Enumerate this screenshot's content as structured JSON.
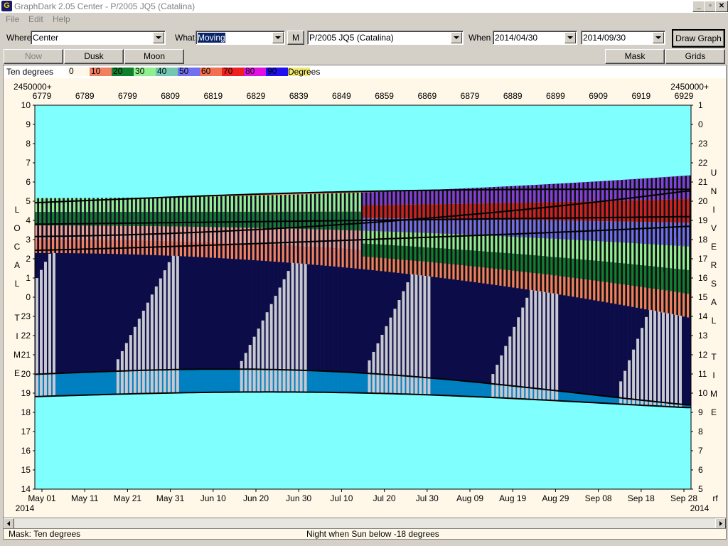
{
  "window": {
    "title": "GraphDark 2.05  Center  -  P/2005 JQ5 (Catalina)",
    "icon_letter": "G",
    "controls": [
      "_",
      "▫",
      "✕"
    ]
  },
  "menu": {
    "items": [
      "File",
      "Edit",
      "Help"
    ]
  },
  "toolbar": {
    "where_label": "Where",
    "where_value": "Center",
    "what_label": "What",
    "what_value": "Moving",
    "m_label": "M",
    "object_value": "P/2005 JQ5 (Catalina)",
    "when_label": "When",
    "start_date": "2014/04/30",
    "end_date": "2014/09/30",
    "draw_label": "Draw Graph"
  },
  "toolbar2": {
    "now_label": "Now",
    "dusk_label": "Dusk",
    "moon_label": "Moon",
    "mask_label": "Mask",
    "grids_label": "Grids"
  },
  "legend": {
    "title": "Ten degrees",
    "unit": "Degrees",
    "items": [
      {
        "label": "0",
        "color": "#fff8e8"
      },
      {
        "label": "10",
        "color": "#f08060"
      },
      {
        "label": "20",
        "color": "#108030"
      },
      {
        "label": "30",
        "color": "#90f090"
      },
      {
        "label": "40",
        "color": "#70c8b0"
      },
      {
        "label": "50",
        "color": "#7070f0"
      },
      {
        "label": "60",
        "color": "#f07050"
      },
      {
        "label": "70",
        "color": "#f02020"
      },
      {
        "label": "80",
        "color": "#e010e0"
      },
      {
        "label": "90",
        "color": "#2010f0"
      },
      {
        "label": "",
        "color": "#f0e870"
      }
    ]
  },
  "chart": {
    "jd_prefix": "2450000+",
    "jd_ticks": [
      "6779",
      "6789",
      "6799",
      "6809",
      "6819",
      "6829",
      "6839",
      "6849",
      "6859",
      "6869",
      "6879",
      "6889",
      "6899",
      "6909",
      "6919",
      "6929"
    ],
    "date_ticks": [
      "May 01",
      "May 11",
      "May 21",
      "May 31",
      "Jun 10",
      "Jun 20",
      "Jun 30",
      "Jul 10",
      "Jul 20",
      "Jul 30",
      "Aug 09",
      "Aug 19",
      "Aug 29",
      "Sep 08",
      "Sep 18",
      "Sep 28"
    ],
    "year_left": "2014",
    "year_right": "2014",
    "left_hours": [
      "10",
      "9",
      "8",
      "7",
      "6",
      "5",
      "4",
      "3",
      "2",
      "1",
      "0",
      "23",
      "22",
      "21",
      "20",
      "19",
      "18",
      "17",
      "16",
      "15",
      "14"
    ],
    "right_hours": [
      "1",
      "0",
      "23",
      "22",
      "21",
      "20",
      "19",
      "18",
      "17",
      "16",
      "15",
      "14",
      "13",
      "12",
      "11",
      "10",
      "9",
      "8",
      "7",
      "6",
      "5"
    ],
    "left_vertical_1": [
      "L",
      "O",
      "C",
      "A",
      "L"
    ],
    "left_vertical_2": [
      "T",
      "I",
      "M",
      "E"
    ],
    "right_vertical_1": [
      "U",
      "N",
      "I",
      "V",
      "E",
      "R",
      "S",
      "A",
      "L"
    ],
    "right_vertical_2": [
      "T",
      "I",
      "M",
      "E"
    ],
    "right_corner_label": "rf",
    "colors": {
      "day": "#80ffff",
      "night": "#0c0c48",
      "twilight": "#0080c0",
      "moon": "#c8c8d0",
      "band_orange": "#f08060",
      "band_darkgreen": "#108030",
      "band_lightgreen": "#90f090",
      "band_blue": "#7070f0",
      "band_red": "#d02020",
      "band_purple": "#8040e0",
      "band_salmon": "#e8a090"
    }
  },
  "status": {
    "mask_text": "Mask:  Ten degrees",
    "night_text": "Night when Sun below -18 degrees"
  }
}
